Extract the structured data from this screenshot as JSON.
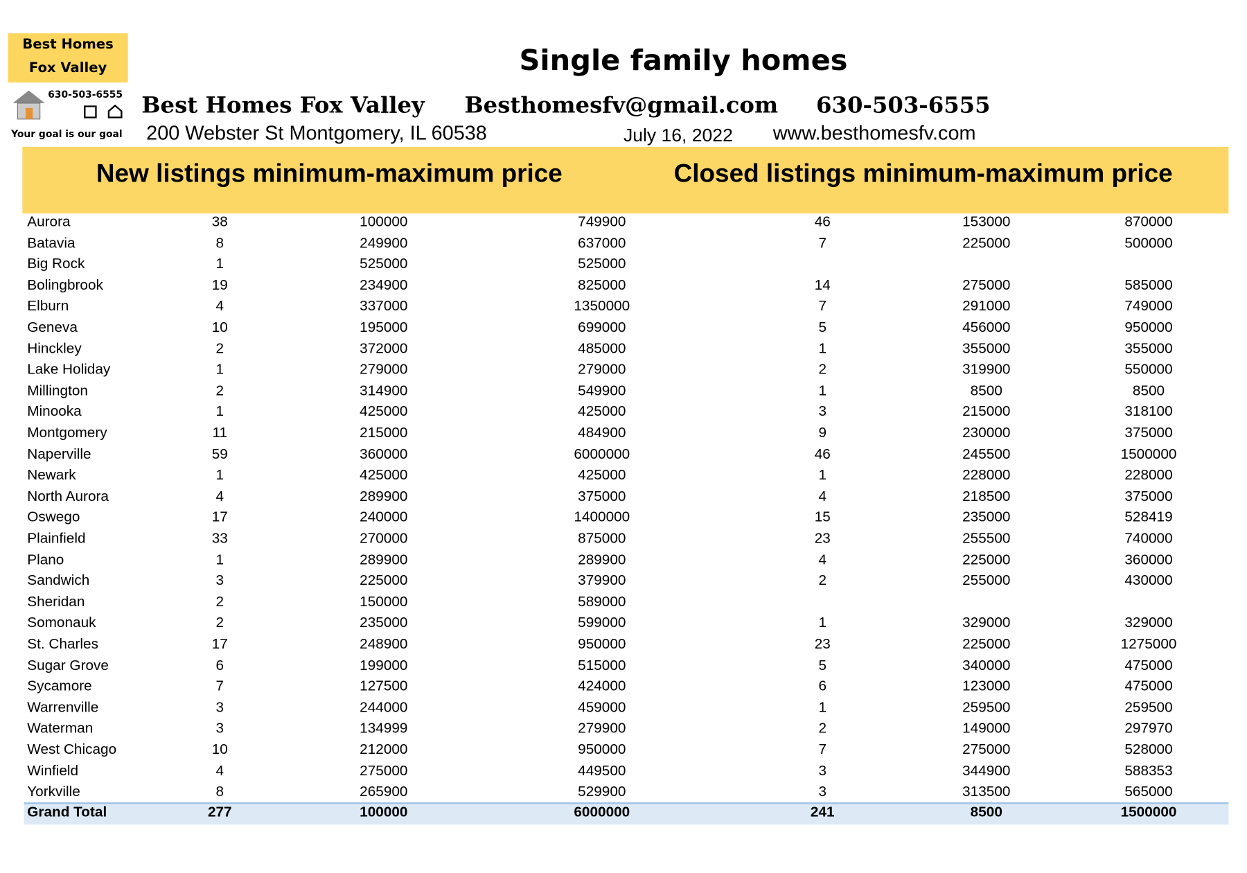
{
  "logo": {
    "line1": "Best Homes",
    "line2": "Fox Valley",
    "phone": "630-503-6555",
    "tagline": "Your goal is our goal"
  },
  "header": {
    "title": "Single family homes",
    "company": "Best Homes Fox Valley",
    "email": "Besthomesfv@gmail.com",
    "phone": "630-503-6555",
    "address": "200 Webster St Montgomery, IL 60538",
    "date": "July 16, 2022",
    "website": "www.besthomesfv.com"
  },
  "table": {
    "headings": [
      "New listings minimum-maximum price",
      "Closed listings minimum-maximum price"
    ],
    "rows": [
      [
        "Aurora",
        38,
        100000,
        749900,
        46,
        153000,
        870000
      ],
      [
        "Batavia",
        8,
        249900,
        637000,
        7,
        225000,
        500000
      ],
      [
        "Big Rock",
        1,
        525000,
        525000,
        null,
        null,
        null
      ],
      [
        "Bolingbrook",
        19,
        234900,
        825000,
        14,
        275000,
        585000
      ],
      [
        "Elburn",
        4,
        337000,
        1350000,
        7,
        291000,
        749000
      ],
      [
        "Geneva",
        10,
        195000,
        699000,
        5,
        456000,
        950000
      ],
      [
        "Hinckley",
        2,
        372000,
        485000,
        1,
        355000,
        355000
      ],
      [
        "Lake Holiday",
        1,
        279000,
        279000,
        2,
        319900,
        550000
      ],
      [
        "Millington",
        2,
        314900,
        549900,
        1,
        8500,
        8500
      ],
      [
        "Minooka",
        1,
        425000,
        425000,
        3,
        215000,
        318100
      ],
      [
        "Montgomery",
        11,
        215000,
        484900,
        9,
        230000,
        375000
      ],
      [
        "Naperville",
        59,
        360000,
        6000000,
        46,
        245500,
        1500000
      ],
      [
        "Newark",
        1,
        425000,
        425000,
        1,
        228000,
        228000
      ],
      [
        "North Aurora",
        4,
        289900,
        375000,
        4,
        218500,
        375000
      ],
      [
        "Oswego",
        17,
        240000,
        1400000,
        15,
        235000,
        528419
      ],
      [
        "Plainfield",
        33,
        270000,
        875000,
        23,
        255500,
        740000
      ],
      [
        "Plano",
        1,
        289900,
        289900,
        4,
        225000,
        360000
      ],
      [
        "Sandwich",
        3,
        225000,
        379900,
        2,
        255000,
        430000
      ],
      [
        "Sheridan",
        2,
        150000,
        589000,
        null,
        null,
        null
      ],
      [
        "Somonauk",
        2,
        235000,
        599000,
        1,
        329000,
        329000
      ],
      [
        "St. Charles",
        17,
        248900,
        950000,
        23,
        225000,
        1275000
      ],
      [
        "Sugar Grove",
        6,
        199000,
        515000,
        5,
        340000,
        475000
      ],
      [
        "Sycamore",
        7,
        127500,
        424000,
        6,
        123000,
        475000
      ],
      [
        "Warrenville",
        3,
        244000,
        459000,
        1,
        259500,
        259500
      ],
      [
        "Waterman",
        3,
        134999,
        279900,
        2,
        149000,
        297970
      ],
      [
        "West Chicago",
        10,
        212000,
        950000,
        7,
        275000,
        528000
      ],
      [
        "Winfield",
        4,
        275000,
        449500,
        3,
        344900,
        588353
      ],
      [
        "Yorkville",
        8,
        265900,
        529900,
        3,
        313500,
        565000
      ]
    ],
    "total": [
      "Grand Total",
      277,
      100000,
      6000000,
      241,
      8500,
      1500000
    ]
  }
}
